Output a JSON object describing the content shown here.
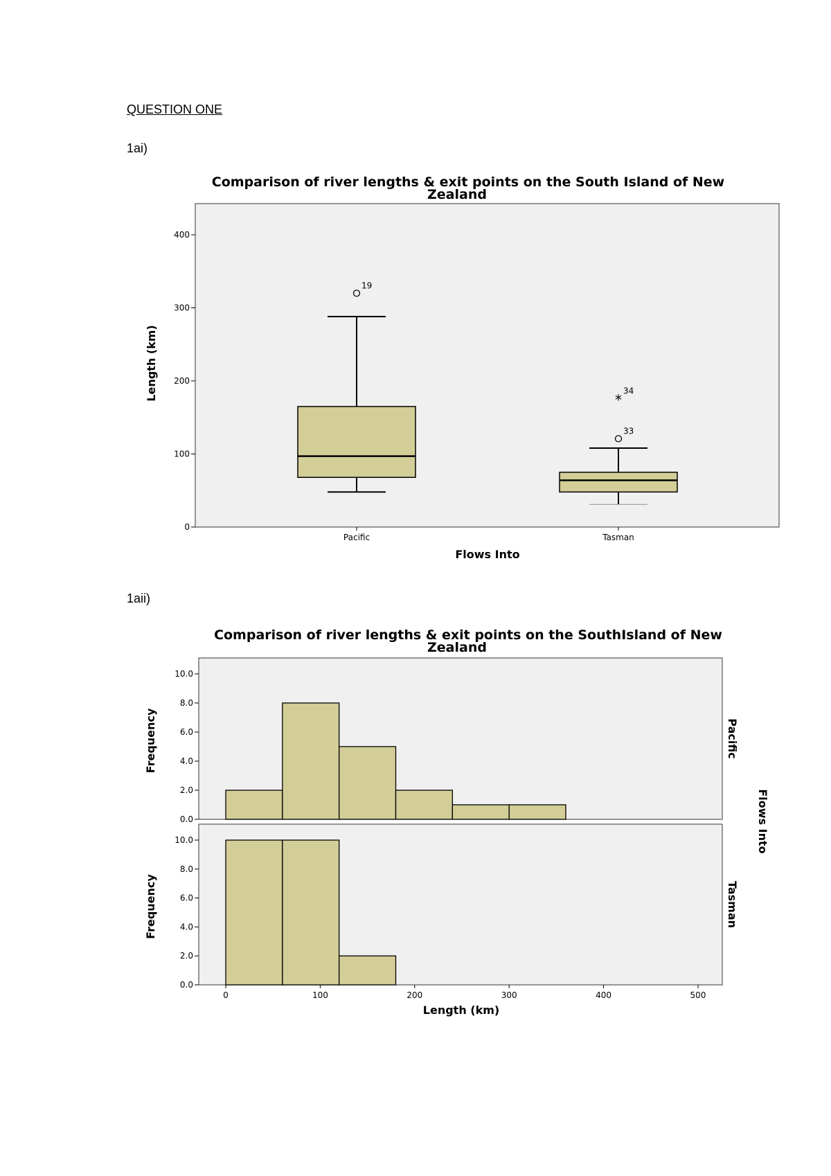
{
  "page": {
    "heading": "QUESTION ONE",
    "label_1ai": "1ai)",
    "label_1aii": "1aii)"
  },
  "colors": {
    "box_fill": "#d3cd97",
    "plot_bg": "#f0f0f0",
    "stroke": "#000000"
  },
  "chart_data": [
    {
      "type": "box",
      "title": "Comparison of river lengths & exit points on the South Island of New Zealand",
      "title_lines": [
        "Comparison of river lengths & exit points on the South Island of New",
        "Zealand"
      ],
      "xlabel": "Flows Into",
      "ylabel": "Length (km)",
      "ylim": [
        0,
        450
      ],
      "yticks": [
        0,
        100,
        200,
        300,
        400
      ],
      "categories": [
        "Pacific",
        "Tasman"
      ],
      "boxes": [
        {
          "category": "Pacific",
          "whisker_low": 48,
          "q1": 68,
          "median": 97,
          "q3": 165,
          "whisker_high": 288,
          "outliers": [
            {
              "value": 320,
              "label": "19",
              "marker": "o"
            }
          ]
        },
        {
          "category": "Tasman",
          "whisker_low": 31,
          "q1": 48,
          "median": 64,
          "q3": 75,
          "whisker_high": 108,
          "outliers": [
            {
              "value": 121,
              "label": "33",
              "marker": "o"
            },
            {
              "value": 176,
              "label": "34",
              "marker": "*"
            }
          ]
        }
      ]
    },
    {
      "type": "bar",
      "title": "Comparison of river lengths & exit points on the SouthIsland of New Zealand",
      "title_lines": [
        "Comparison of river lengths & exit points on the SouthIsland of New",
        "Zealand"
      ],
      "xlabel": "Length (km)",
      "ylabel": "Frequency",
      "panel_label": "Flows Into",
      "xlim": [
        -30,
        530
      ],
      "xticks": [
        0,
        100,
        200,
        300,
        400,
        500
      ],
      "ylim": [
        0,
        11
      ],
      "yticks": [
        "0.0",
        "2.0",
        "4.0",
        "6.0",
        "8.0",
        "10.0"
      ],
      "bin_edges": [
        0,
        60,
        120,
        180,
        240,
        300,
        360
      ],
      "series": [
        {
          "name": "Pacific",
          "values": [
            2,
            8,
            5,
            2,
            1,
            1
          ]
        },
        {
          "name": "Tasman",
          "values": [
            10,
            10,
            2,
            0,
            0,
            0
          ]
        }
      ]
    }
  ]
}
